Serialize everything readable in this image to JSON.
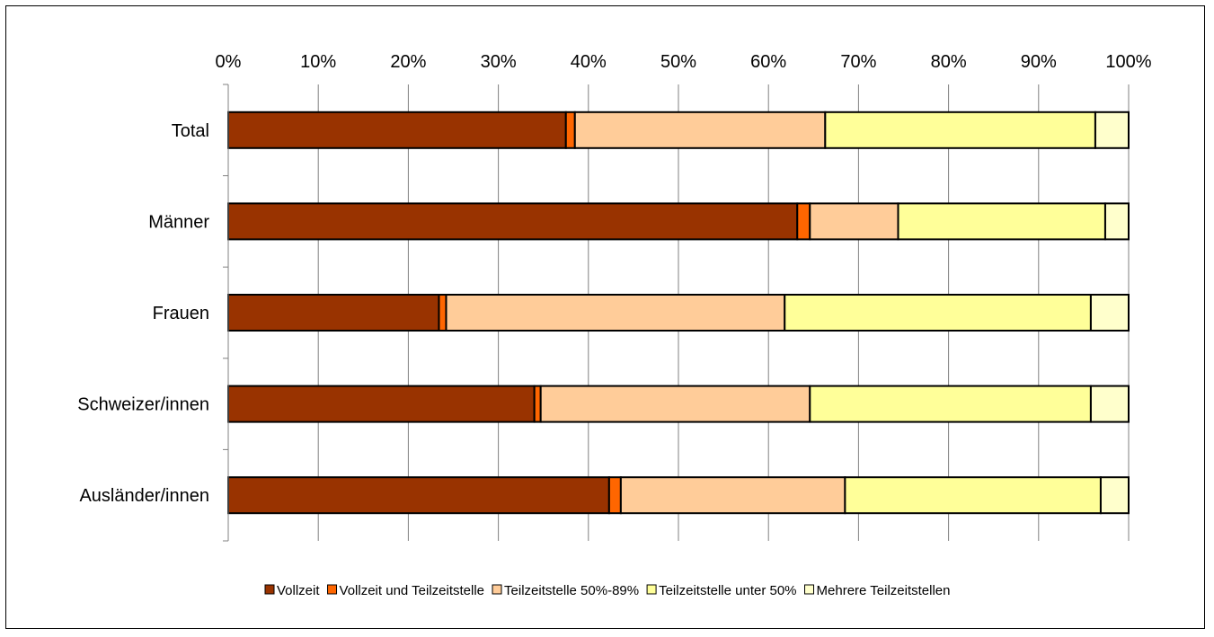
{
  "chart_data": {
    "type": "bar",
    "orientation": "horizontal",
    "stacked": true,
    "percent": true,
    "categories": [
      "Total",
      "Männer",
      "Frauen",
      "Schweizer/innen",
      "Ausländer/innen"
    ],
    "series": [
      {
        "name": "Vollzeit",
        "color": "#993300",
        "values": [
          37.5,
          63.2,
          23.4,
          34.0,
          42.3
        ]
      },
      {
        "name": "Vollzeit und Teilzeitstelle",
        "color": "#FF6600",
        "values": [
          1.0,
          1.4,
          0.8,
          0.7,
          1.3
        ]
      },
      {
        "name": "Teilzeitstelle 50%-89%",
        "color": "#FFCC99",
        "values": [
          27.8,
          9.8,
          37.6,
          29.9,
          24.9
        ]
      },
      {
        "name": "Teilzeitstelle unter 50%",
        "color": "#FFFF99",
        "values": [
          30.0,
          23.0,
          34.0,
          31.2,
          28.4
        ]
      },
      {
        "name": "Mehrere Teilzeitstellen",
        "color": "#FFFFCC",
        "values": [
          3.7,
          2.6,
          4.2,
          4.2,
          3.1
        ]
      }
    ],
    "xlim": [
      0,
      100
    ],
    "x_ticks": [
      "0%",
      "10%",
      "20%",
      "30%",
      "40%",
      "50%",
      "60%",
      "70%",
      "80%",
      "90%",
      "100%"
    ],
    "x_axis_position": "top",
    "grid": true,
    "legend_position": "bottom"
  }
}
